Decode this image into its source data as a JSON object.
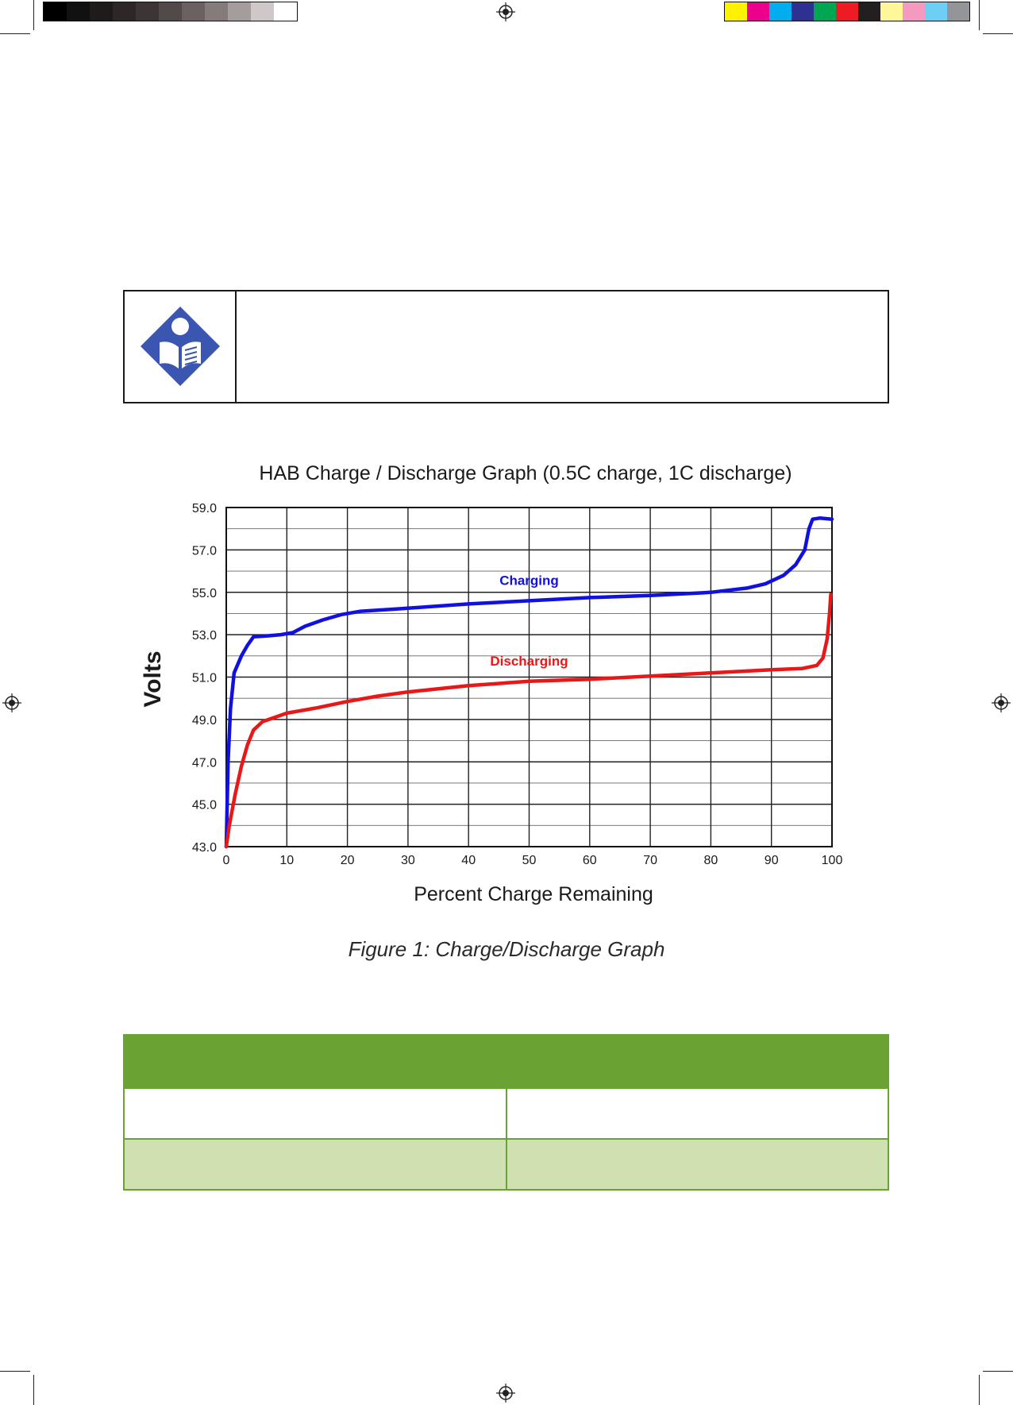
{
  "print_marks": {
    "gray_swatches": [
      "#000000",
      "#111111",
      "#1f1b1b",
      "#2d2727",
      "#3d3535",
      "#524949",
      "#6b6161",
      "#857b7b",
      "#a59c9c",
      "#cfc8c8",
      "#ffffff"
    ],
    "color_swatches": [
      "#fff200",
      "#ec008c",
      "#00aeef",
      "#2e3192",
      "#00a651",
      "#ed1c24",
      "#231f20",
      "#fff799",
      "#f49ac1",
      "#6dcff6",
      "#939598"
    ],
    "registration_icon": "registration-target-icon"
  },
  "note": {
    "icon": "manual-reading-icon",
    "icon_color": "#3a56b0"
  },
  "chart_data": {
    "type": "line",
    "title": "HAB Charge / Discharge Graph (0.5C charge, 1C discharge)",
    "xlabel": "Percent Charge Remaining",
    "ylabel": "Volts",
    "xlim": [
      0,
      100
    ],
    "ylim": [
      43.0,
      59.0
    ],
    "x_ticks": [
      "0",
      "10",
      "20",
      "30",
      "40",
      "50",
      "60",
      "70",
      "80",
      "90",
      "100"
    ],
    "y_ticks": [
      "43.0",
      "45.0",
      "47.0",
      "49.0",
      "51.0",
      "53.0",
      "55.0",
      "57.0",
      "59.0"
    ],
    "grid": true,
    "series": [
      {
        "name": "Charging",
        "color": "#1010e0",
        "points": [
          [
            0,
            43.0
          ],
          [
            0.3,
            47.0
          ],
          [
            0.7,
            49.5
          ],
          [
            1.3,
            51.2
          ],
          [
            2.5,
            52.0
          ],
          [
            3.5,
            52.5
          ],
          [
            4.5,
            52.9
          ],
          [
            7,
            52.95
          ],
          [
            9,
            53.0
          ],
          [
            11,
            53.1
          ],
          [
            13,
            53.4
          ],
          [
            16,
            53.7
          ],
          [
            19,
            53.95
          ],
          [
            22,
            54.1
          ],
          [
            30,
            54.25
          ],
          [
            40,
            54.45
          ],
          [
            50,
            54.6
          ],
          [
            60,
            54.75
          ],
          [
            70,
            54.85
          ],
          [
            80,
            55.0
          ],
          [
            86,
            55.2
          ],
          [
            89,
            55.4
          ],
          [
            92,
            55.8
          ],
          [
            94,
            56.3
          ],
          [
            95.5,
            57.0
          ],
          [
            96.2,
            58.0
          ],
          [
            96.8,
            58.45
          ],
          [
            98,
            58.5
          ],
          [
            100,
            58.45
          ]
        ]
      },
      {
        "name": "Discharging",
        "color": "#e81818",
        "points": [
          [
            0,
            43.0
          ],
          [
            0.5,
            44.0
          ],
          [
            1.5,
            45.5
          ],
          [
            2.5,
            46.8
          ],
          [
            3.5,
            47.8
          ],
          [
            4.5,
            48.5
          ],
          [
            6,
            48.9
          ],
          [
            8,
            49.1
          ],
          [
            10,
            49.3
          ],
          [
            15,
            49.55
          ],
          [
            20,
            49.85
          ],
          [
            25,
            50.1
          ],
          [
            30,
            50.3
          ],
          [
            40,
            50.6
          ],
          [
            50,
            50.8
          ],
          [
            60,
            50.9
          ],
          [
            70,
            51.05
          ],
          [
            80,
            51.2
          ],
          [
            90,
            51.35
          ],
          [
            95,
            51.4
          ],
          [
            97.5,
            51.55
          ],
          [
            98.5,
            51.9
          ],
          [
            99.2,
            52.8
          ],
          [
            99.6,
            54.0
          ],
          [
            99.8,
            54.9
          ]
        ]
      }
    ]
  },
  "caption": "Figure 1: Charge/Discharge Graph"
}
